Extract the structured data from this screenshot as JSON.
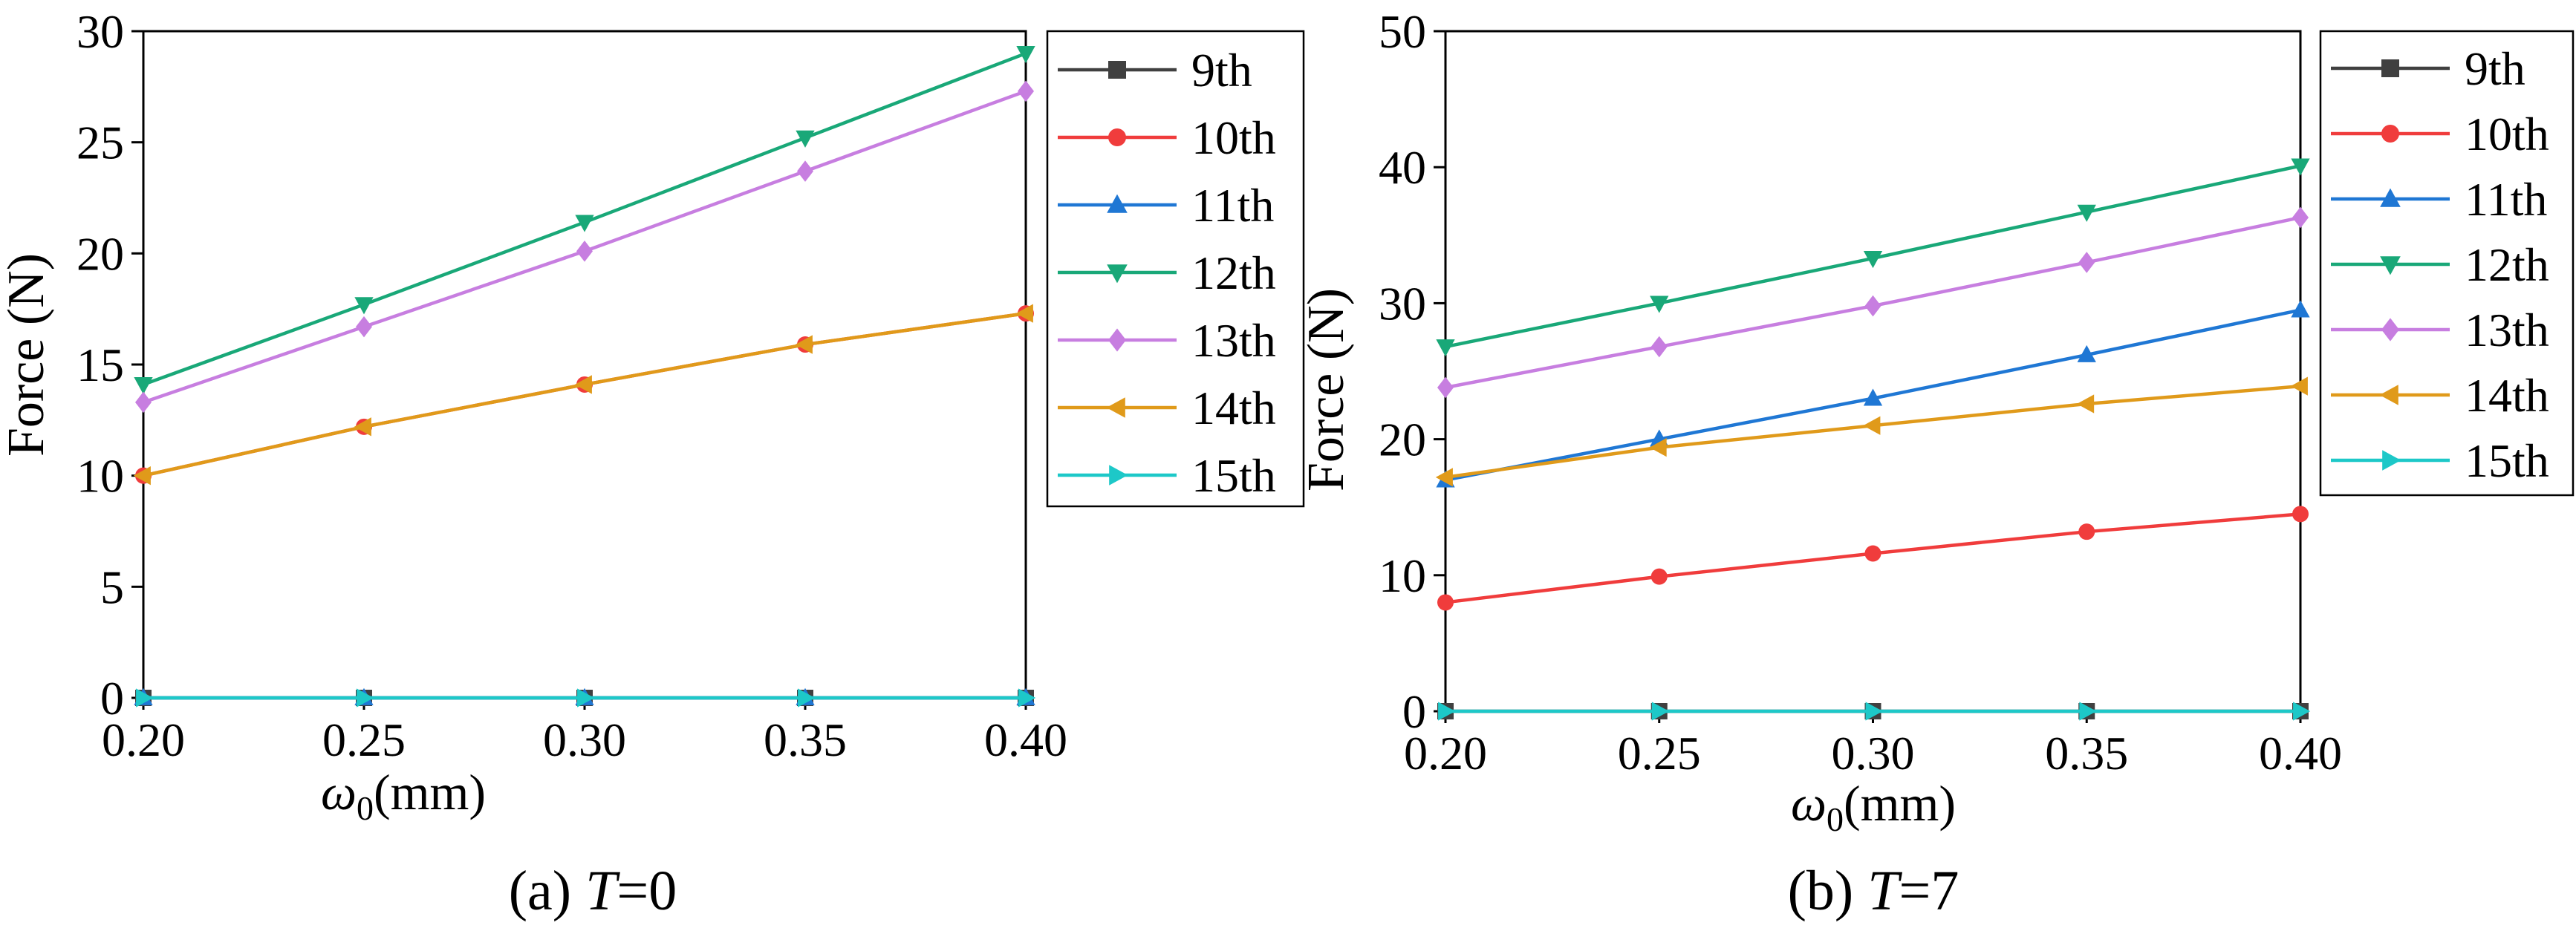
{
  "chart_data": [
    {
      "type": "line",
      "panel_label": "(a) ",
      "panel_var": "T",
      "panel_value": "=0",
      "ylabel": "Force (N)",
      "xlabel_symbol": "ω",
      "xlabel_sub": "0",
      "xlabel_unit": "(mm)",
      "xlim": [
        0.2,
        0.4
      ],
      "ylim": [
        0,
        30
      ],
      "xticks": [
        "0.20",
        "0.25",
        "0.30",
        "0.35",
        "0.40"
      ],
      "yticks": [
        "0",
        "5",
        "10",
        "15",
        "20",
        "25",
        "30"
      ],
      "x": [
        0.2,
        0.25,
        0.3,
        0.35,
        0.4
      ],
      "legend": "outside-right",
      "series": [
        {
          "name": "9th",
          "color": "#404040",
          "marker": "square",
          "values": [
            0,
            0,
            0,
            0,
            0
          ]
        },
        {
          "name": "10th",
          "color": "#f03c3c",
          "marker": "circle",
          "values": [
            10.0,
            12.2,
            14.1,
            15.9,
            17.3
          ]
        },
        {
          "name": "11th",
          "color": "#1f77d4",
          "marker": "triangle-up",
          "values": [
            0,
            0,
            0,
            0,
            0
          ]
        },
        {
          "name": "12th",
          "color": "#19a878",
          "marker": "triangle-down",
          "values": [
            14.1,
            17.7,
            21.4,
            25.2,
            29.0
          ]
        },
        {
          "name": "13th",
          "color": "#c77ee0",
          "marker": "diamond",
          "values": [
            13.3,
            16.7,
            20.1,
            23.7,
            27.3
          ]
        },
        {
          "name": "14th",
          "color": "#e09a1a",
          "marker": "triangle-left",
          "values": [
            10.0,
            12.2,
            14.1,
            15.9,
            17.3
          ]
        },
        {
          "name": "15th",
          "color": "#1dc8c8",
          "marker": "triangle-right",
          "values": [
            0,
            0,
            0,
            0,
            0
          ]
        }
      ]
    },
    {
      "type": "line",
      "panel_label": "(b) ",
      "panel_var": "T",
      "panel_value": "=7",
      "ylabel": "Force (N)",
      "xlabel_symbol": "ω",
      "xlabel_sub": "0",
      "xlabel_unit": "(mm)",
      "xlim": [
        0.2,
        0.4
      ],
      "ylim": [
        0,
        50
      ],
      "xticks": [
        "0.20",
        "0.25",
        "0.30",
        "0.35",
        "0.40"
      ],
      "yticks": [
        "0",
        "10",
        "20",
        "30",
        "40",
        "50"
      ],
      "x": [
        0.2,
        0.25,
        0.3,
        0.35,
        0.4
      ],
      "legend": "outside-right",
      "series": [
        {
          "name": "9th",
          "color": "#404040",
          "marker": "square",
          "values": [
            0,
            0,
            0,
            0,
            0
          ]
        },
        {
          "name": "10th",
          "color": "#f03c3c",
          "marker": "circle",
          "values": [
            8.0,
            9.9,
            11.6,
            13.2,
            14.5
          ]
        },
        {
          "name": "11th",
          "color": "#1f77d4",
          "marker": "triangle-up",
          "values": [
            17.0,
            20.0,
            23.0,
            26.2,
            29.5
          ]
        },
        {
          "name": "12th",
          "color": "#19a878",
          "marker": "triangle-down",
          "values": [
            26.8,
            30.0,
            33.3,
            36.7,
            40.1
          ]
        },
        {
          "name": "13th",
          "color": "#c77ee0",
          "marker": "diamond",
          "values": [
            23.8,
            26.8,
            29.8,
            33.0,
            36.3
          ]
        },
        {
          "name": "14th",
          "color": "#e09a1a",
          "marker": "triangle-left",
          "values": [
            17.2,
            19.4,
            21.0,
            22.6,
            23.9
          ]
        },
        {
          "name": "15th",
          "color": "#1dc8c8",
          "marker": "triangle-right",
          "values": [
            0,
            0,
            0,
            0,
            0
          ]
        }
      ]
    }
  ]
}
